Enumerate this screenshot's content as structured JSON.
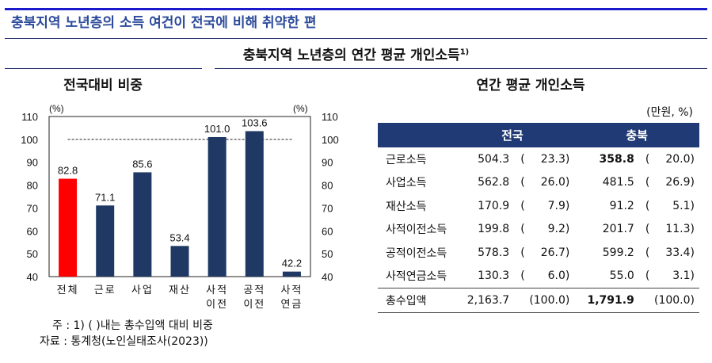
{
  "headline": "충북지역 노년층의 소득 여건이 전국에 비해 취약한 편",
  "subtitle": "충북지역 노년층의 연간 평균 개인소득",
  "subtitle_sup": "1)",
  "left_title": "전국대비 비중",
  "right_title": "연간 평균 개인소득",
  "colors": {
    "headline": "#2b4a9a",
    "bar_total": "#ff0000",
    "bar": "#1f3864",
    "table_header": "#1f3a75"
  },
  "chart_data": {
    "type": "bar",
    "categories": [
      [
        "전체"
      ],
      [
        "근로"
      ],
      [
        "사업"
      ],
      [
        "재산"
      ],
      [
        "사적",
        "이전"
      ],
      [
        "공적",
        "이전"
      ],
      [
        "사적",
        "연금"
      ]
    ],
    "values": [
      82.8,
      71.1,
      85.6,
      53.4,
      101.0,
      103.6,
      42.2
    ],
    "value_labels": [
      "82.8",
      "71.1",
      "85.6",
      "53.4",
      "101.0",
      "103.6",
      "42.2"
    ],
    "ylim": [
      40,
      110
    ],
    "yticks": [
      40,
      50,
      60,
      70,
      80,
      90,
      100,
      110
    ],
    "y_unit_left": "(%)",
    "y_unit_right": "(%)",
    "reference_line": 100,
    "grid": false,
    "highlight": "전체"
  },
  "notes": {
    "note": "주 : 1) (    )내는 총수입액 대비 비중",
    "source": "자료 : 통계청(노인실태조사(2023))"
  },
  "table": {
    "unit": "(만원, %)",
    "headers": [
      "",
      "전국",
      "충북"
    ],
    "rows": [
      {
        "label": "근로소득",
        "nat": "504.3",
        "nat_pct": "23.3",
        "cb": "358.8",
        "cb_pct": "20.0",
        "cb_bold": true
      },
      {
        "label": "사업소득",
        "nat": "562.8",
        "nat_pct": "26.0",
        "cb": "481.5",
        "cb_pct": "26.9"
      },
      {
        "label": "재산소득",
        "nat": "170.9",
        "nat_pct": "7.9",
        "cb": "91.2",
        "cb_pct": "5.1"
      },
      {
        "label": "사적이전소득",
        "nat": "199.8",
        "nat_pct": "9.2",
        "cb": "201.7",
        "cb_pct": "11.3"
      },
      {
        "label": "공적이전소득",
        "nat": "578.3",
        "nat_pct": "26.7",
        "cb": "599.2",
        "cb_pct": "33.4"
      },
      {
        "label": "사적연금소득",
        "nat": "130.3",
        "nat_pct": "6.0",
        "cb": "55.0",
        "cb_pct": "3.1"
      }
    ],
    "total": {
      "label": "총수입액",
      "nat": "2,163.7",
      "nat_pct": "(100.0)",
      "cb": "1,791.9",
      "cb_pct": "(100.0)"
    }
  }
}
